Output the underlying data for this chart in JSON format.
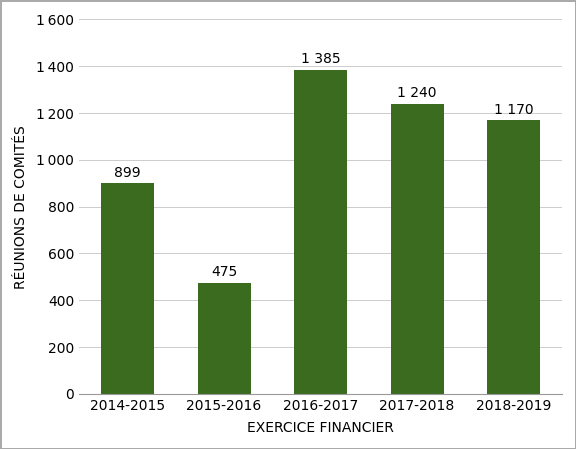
{
  "categories": [
    "2014-2015",
    "2015-2016",
    "2016-2017",
    "2017-2018",
    "2018-2019"
  ],
  "values": [
    899,
    475,
    1385,
    1240,
    1170
  ],
  "bar_color": "#3a6b1e",
  "xlabel": "EXERCICE FINANCIER",
  "ylabel": "RÉUNIONS DE COMITÉS",
  "ylim": [
    0,
    1600
  ],
  "yticks": [
    0,
    200,
    400,
    600,
    800,
    1000,
    1200,
    1400,
    1600
  ],
  "label_values": [
    "899",
    "475",
    "1 385",
    "1 240",
    "1 170"
  ],
  "background_color": "#ffffff",
  "border_color": "#aaaaaa",
  "grid_color": "#cccccc",
  "tick_label_fontsize": 10,
  "axis_label_fontsize": 10,
  "bar_label_fontsize": 10
}
